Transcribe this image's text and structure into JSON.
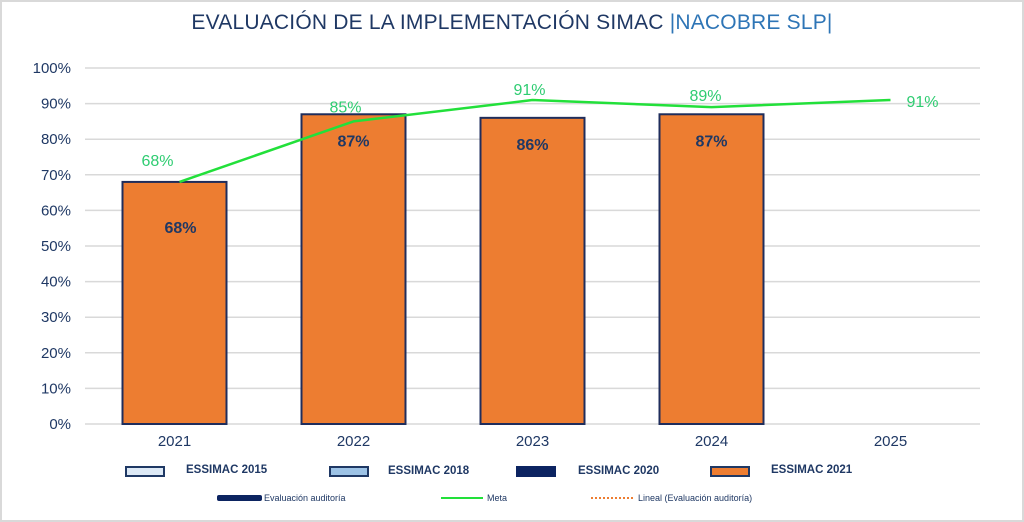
{
  "title": {
    "main": "EVALUACIÓN DE LA IMPLEMENTACIÓN SIMAC ",
    "sub": "|NACOBRE SLP|"
  },
  "chart_data": {
    "type": "bar",
    "title": "EVALUACIÓN DE LA IMPLEMENTACIÓN SIMAC |NACOBRE SLP|",
    "xlabel": "",
    "ylabel": "",
    "ylim": [
      0,
      100
    ],
    "y_ticks": [
      "0%",
      "10%",
      "20%",
      "30%",
      "40%",
      "50%",
      "60%",
      "70%",
      "80%",
      "90%",
      "100%"
    ],
    "grid": true,
    "categories": [
      "2021",
      "2022",
      "2023",
      "2024",
      "2025"
    ],
    "series": [
      {
        "name": "Evaluación auditoría",
        "type": "bar",
        "color": "#ed7d31",
        "border": "#1f2d5c",
        "values": [
          68,
          87,
          86,
          87,
          null
        ],
        "labels": [
          "68%",
          "87%",
          "86%",
          "87%",
          ""
        ]
      },
      {
        "name": "Meta",
        "type": "line",
        "color": "#22e03a",
        "values": [
          68,
          85,
          91,
          89,
          91
        ],
        "labels": [
          "68%",
          "85%",
          "91%",
          "89%",
          "91%"
        ]
      }
    ],
    "legend_position": "bottom",
    "legend_rows": [
      [
        {
          "label": "ESSIMAC 2015",
          "fill": "#dde9f6",
          "border": "#1f3864"
        },
        {
          "label": "ESSIMAC 2018",
          "fill": "#9dc3e6",
          "border": "#1f3864"
        },
        {
          "label": "ESSIMAC 2020",
          "fill": "#0c2461",
          "border": "#0c2461"
        },
        {
          "label": "ESSIMAC 2021",
          "fill": "#ed7d31",
          "border": "#1f3864"
        }
      ],
      [
        {
          "label": "Evaluación auditoría",
          "style": "bar",
          "color": "#0c2461"
        },
        {
          "label": "Meta",
          "style": "line",
          "color": "#22e03a"
        },
        {
          "label": "Lineal (Evaluación auditoría)",
          "style": "dotted",
          "color": "#ed7d31"
        }
      ]
    ]
  }
}
